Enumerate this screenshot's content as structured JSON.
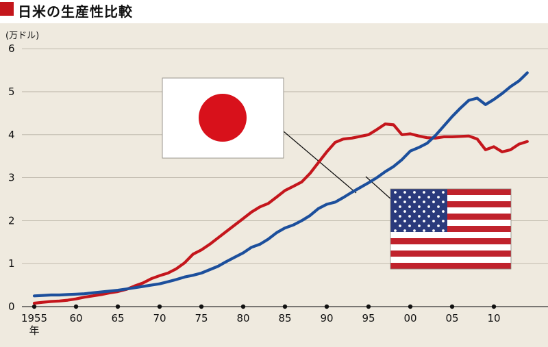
{
  "title": "日米の生産性比較",
  "colors": {
    "title_marker": "#c4161c",
    "background": "#efeadf",
    "japan": "#c4161c",
    "usa": "#1c4f9c"
  },
  "chart_data": {
    "type": "line",
    "ylabel": "(万ドル)",
    "xlabel": "",
    "ylim": [
      0,
      6
    ],
    "xlim": [
      1955,
      2014
    ],
    "y_ticks": [
      "0",
      "1",
      "2",
      "3",
      "4",
      "5",
      "6"
    ],
    "x_ticks": [
      {
        "value": 1955,
        "label": "1955",
        "sublabel": "年"
      },
      {
        "value": 1960,
        "label": "60"
      },
      {
        "value": 1965,
        "label": "65"
      },
      {
        "value": 1970,
        "label": "70"
      },
      {
        "value": 1975,
        "label": "75"
      },
      {
        "value": 1980,
        "label": "80"
      },
      {
        "value": 1985,
        "label": "85"
      },
      {
        "value": 1990,
        "label": "90"
      },
      {
        "value": 1995,
        "label": "95"
      },
      {
        "value": 2000,
        "label": "00"
      },
      {
        "value": 2005,
        "label": "05"
      },
      {
        "value": 2010,
        "label": "10"
      }
    ],
    "grid": "horizontal",
    "legend": "flag images (Japan: upper-left, USA: lower-right)",
    "series": [
      {
        "id": "japan",
        "color": "#c4161c",
        "x": [
          1955,
          1956,
          1957,
          1958,
          1959,
          1960,
          1961,
          1962,
          1963,
          1964,
          1965,
          1966,
          1967,
          1968,
          1969,
          1970,
          1971,
          1972,
          1973,
          1974,
          1975,
          1976,
          1977,
          1978,
          1979,
          1980,
          1981,
          1982,
          1983,
          1984,
          1985,
          1986,
          1987,
          1988,
          1989,
          1990,
          1991,
          1992,
          1993,
          1994,
          1995,
          1996,
          1997,
          1998,
          1999,
          2000,
          2001,
          2002,
          2003,
          2004,
          2005,
          2006,
          2007,
          2008,
          2009,
          2010,
          2011,
          2012,
          2013,
          2014
        ],
        "values": [
          0.08,
          0.1,
          0.12,
          0.13,
          0.15,
          0.18,
          0.22,
          0.25,
          0.28,
          0.32,
          0.35,
          0.4,
          0.48,
          0.55,
          0.65,
          0.72,
          0.78,
          0.88,
          1.02,
          1.22,
          1.32,
          1.45,
          1.6,
          1.75,
          1.9,
          2.05,
          2.2,
          2.32,
          2.4,
          2.55,
          2.7,
          2.8,
          2.9,
          3.1,
          3.35,
          3.6,
          3.82,
          3.9,
          3.92,
          3.96,
          4.0,
          4.12,
          4.25,
          4.23,
          4.0,
          4.02,
          3.97,
          3.93,
          3.92,
          3.95,
          3.95,
          3.96,
          3.97,
          3.9,
          3.65,
          3.72,
          3.6,
          3.65,
          3.78,
          3.84
        ]
      },
      {
        "id": "usa",
        "color": "#1c4f9c",
        "x": [
          1955,
          1956,
          1957,
          1958,
          1959,
          1960,
          1961,
          1962,
          1963,
          1964,
          1965,
          1966,
          1967,
          1968,
          1969,
          1970,
          1971,
          1972,
          1973,
          1974,
          1975,
          1976,
          1977,
          1978,
          1979,
          1980,
          1981,
          1982,
          1983,
          1984,
          1985,
          1986,
          1987,
          1988,
          1989,
          1990,
          1991,
          1992,
          1993,
          1994,
          1995,
          1996,
          1997,
          1998,
          1999,
          2000,
          2001,
          2002,
          2003,
          2004,
          2005,
          2006,
          2007,
          2008,
          2009,
          2010,
          2011,
          2012,
          2013,
          2014
        ],
        "values": [
          0.25,
          0.26,
          0.27,
          0.27,
          0.28,
          0.29,
          0.3,
          0.32,
          0.34,
          0.36,
          0.38,
          0.41,
          0.44,
          0.47,
          0.5,
          0.53,
          0.58,
          0.63,
          0.69,
          0.73,
          0.78,
          0.86,
          0.94,
          1.05,
          1.15,
          1.25,
          1.38,
          1.45,
          1.57,
          1.72,
          1.83,
          1.9,
          2.0,
          2.12,
          2.28,
          2.38,
          2.43,
          2.54,
          2.66,
          2.77,
          2.88,
          3.0,
          3.14,
          3.26,
          3.42,
          3.62,
          3.7,
          3.8,
          3.98,
          4.2,
          4.42,
          4.62,
          4.8,
          4.85,
          4.7,
          4.82,
          4.96,
          5.12,
          5.25,
          5.44
        ]
      }
    ]
  }
}
